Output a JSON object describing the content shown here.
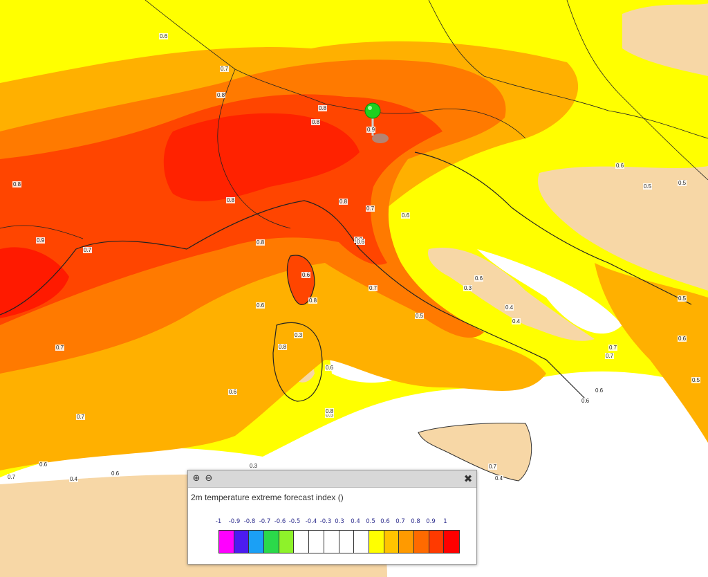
{
  "legend": {
    "title": "2m temperature extreme forecast index ()",
    "ticks": [
      "-1",
      "-0.9",
      "-0.8",
      "-0.7",
      "-0.6",
      "-0.5",
      "-0.4",
      "-0.3",
      "0.3",
      "0.4",
      "0.5",
      "0.6",
      "0.7",
      "0.8",
      "0.9",
      "1"
    ],
    "swatch_colors": [
      "#ff00ff",
      "#4c1cf0",
      "#1ba0f5",
      "#2bd94a",
      "#8ef22a",
      "#ffffff",
      "#ffffff",
      "#ffffff",
      "#ffffff",
      "#ffffff",
      "#ffff00",
      "#ffc400",
      "#ff9a00",
      "#ff6a00",
      "#ff3a00",
      "#ff0000"
    ],
    "icons": [
      "zoom-in-icon",
      "zoom-out-icon",
      "close-icon"
    ]
  },
  "map": {
    "marker": "location-pin-icon",
    "contour_labels": [
      "0.6",
      "0.7",
      "0.8",
      "0.8",
      "0.8",
      "0.9",
      "0.8",
      "0.7",
      "0.9",
      "0.8",
      "0.8",
      "0.8",
      "0.7",
      "0.6",
      "0.8",
      "0.7",
      "0.6",
      "0.8",
      "0.6",
      "0.7",
      "0.8",
      "0.6",
      "0.6",
      "0.7",
      "0.6",
      "0.5",
      "0.3",
      "0.3",
      "0.4",
      "0.6",
      "0.5",
      "0.5",
      "0.4",
      "0.6",
      "0.5",
      "0.6",
      "0.7",
      "0.4",
      "0.7",
      "0.5",
      "0.6",
      "0.7",
      "0.6",
      "0.3",
      "0.4",
      "0.6",
      "0.7",
      "0.5",
      "0.6",
      "0.8"
    ]
  }
}
